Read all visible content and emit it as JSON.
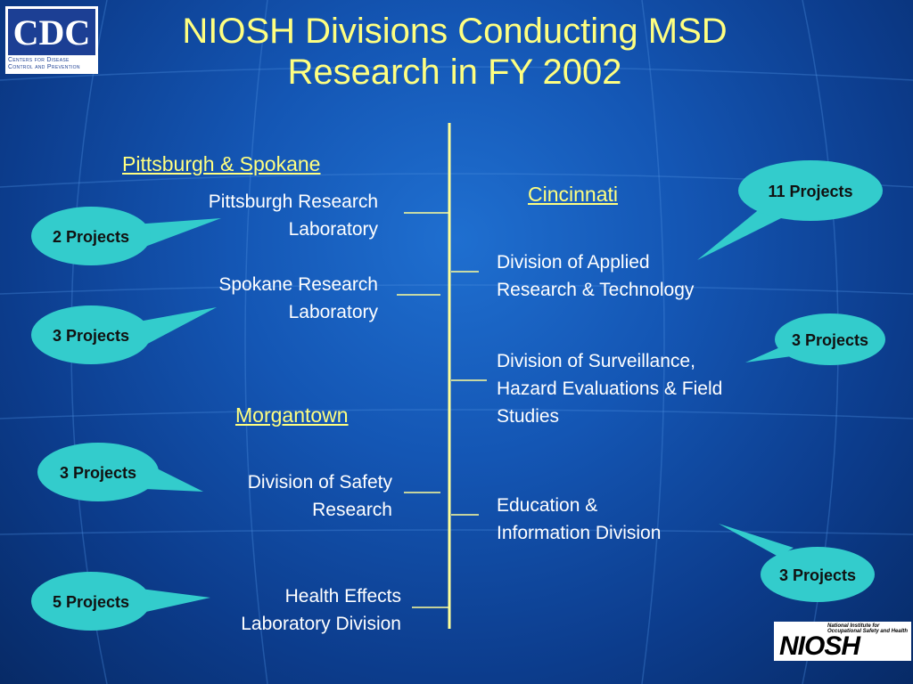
{
  "title": {
    "line1": "NIOSH Divisions Conducting MSD",
    "line2": "Research in FY 2002"
  },
  "logos": {
    "cdc_main": "CDC",
    "cdc_sub_line1": "Centers for Disease",
    "cdc_sub_line2": "Control and Prevention",
    "niosh_tagline": "National Institute for Occupational Safety and Health",
    "niosh_word": "NIOSH"
  },
  "left": {
    "pittsburgh_spokane": {
      "heading": "Pittsburgh & Spokane",
      "divisions": [
        {
          "line1": "Pittsburgh Research",
          "line2": "Laboratory",
          "projects": "2 Projects"
        },
        {
          "line1": "Spokane Research",
          "line2": "Laboratory",
          "projects": "3 Projects"
        }
      ]
    },
    "morgantown": {
      "heading": "Morgantown",
      "divisions": [
        {
          "line1": "Division of Safety",
          "line2": "Research",
          "projects": "3 Projects"
        },
        {
          "line1": "Health Effects",
          "line2": "Laboratory Division",
          "projects": "5 Projects"
        }
      ]
    }
  },
  "right": {
    "cincinnati": {
      "heading": "Cincinnati",
      "divisions": [
        {
          "line1": "Division of Applied",
          "line2": "Research & Technology",
          "projects": "11 Projects"
        },
        {
          "line1": "Division of Surveillance,",
          "line2": "Hazard Evaluations & Field",
          "line3": "Studies",
          "projects": "3 Projects"
        },
        {
          "line1": "Education &",
          "line2": "Information Division",
          "projects": "3 Projects"
        }
      ]
    }
  },
  "colors": {
    "title": "#ffff80",
    "line": "#ffff99",
    "bubble": "#33cccc"
  }
}
